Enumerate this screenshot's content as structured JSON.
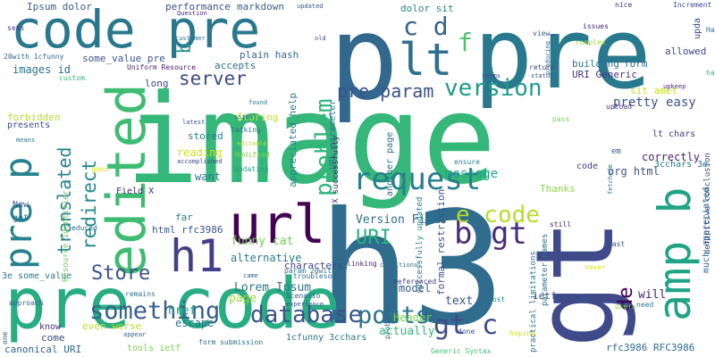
{
  "words": [
    {
      "text": "image",
      "color": "#35b779"
    },
    {
      "text": "h3",
      "color": "#2f6c8e"
    },
    {
      "text": "gt",
      "color": "#3e4a89"
    },
    {
      "text": "pre code",
      "color": "#27ad81"
    },
    {
      "text": "p",
      "color": "#31688e"
    },
    {
      "text": "pre",
      "color": "#29798e"
    },
    {
      "text": "code pre",
      "color": "#2a788e"
    },
    {
      "text": "url",
      "color": "#440154"
    },
    {
      "text": "edited",
      "color": "#3fbc73"
    },
    {
      "text": "lt",
      "color": "#2e6e8e"
    },
    {
      "text": "amp b",
      "color": "#20a386"
    },
    {
      "text": "h1",
      "color": "#424086"
    },
    {
      "text": "pre p",
      "color": "#26828e"
    },
    {
      "text": "request",
      "color": "#277f8e"
    },
    {
      "text": "database",
      "color": "#3b518b"
    },
    {
      "text": "something",
      "color": "#355f8d"
    },
    {
      "text": "posts",
      "color": "#2c738e"
    },
    {
      "text": "version",
      "color": "#1e9c89"
    },
    {
      "text": "pre param",
      "color": "#3b528b"
    },
    {
      "text": "b gt",
      "color": "#472e7c"
    },
    {
      "text": "gt c",
      "color": "#3e4c8a"
    },
    {
      "text": "e code",
      "color": "#b5de2b"
    },
    {
      "text": "URI",
      "color": "#2db27d"
    },
    {
      "text": "Store",
      "color": "#3b528b"
    },
    {
      "text": "redirect",
      "color": "#23898e"
    },
    {
      "text": "translated",
      "color": "#26828e"
    },
    {
      "text": "server",
      "color": "#3e4989"
    },
    {
      "text": "problem",
      "color": "#31b57b"
    },
    {
      "text": "c d",
      "color": "#33638d"
    },
    {
      "text": "f",
      "color": "#4ec36b"
    },
    {
      "text": "b",
      "color": "#20928c"
    },
    {
      "text": "Lorem Ipsum",
      "color": "#2b758e"
    },
    {
      "text": "de",
      "color": "#440154"
    },
    {
      "text": "message",
      "color": "#1fa287"
    },
    {
      "text": "Version Field",
      "color": "#2e6f8e"
    },
    {
      "text": "funny cat",
      "color": "#6ece58"
    },
    {
      "text": "alternative",
      "color": "#287c8e"
    },
    {
      "text": "characters",
      "color": "#414487"
    },
    {
      "text": "Header",
      "color": "#7ad151"
    },
    {
      "text": "model",
      "color": "#38598c"
    },
    {
      "text": "text",
      "color": "#3a538b"
    },
    {
      "text": "page",
      "color": "#98d83e"
    },
    {
      "text": "href",
      "color": "#1f998a"
    },
    {
      "text": "escape",
      "color": "#2c728e"
    },
    {
      "text": "actually",
      "color": "#37b878"
    },
    {
      "text": "pretty easy",
      "color": "#3b528b"
    },
    {
      "text": "sit amet",
      "color": "#c2df23"
    },
    {
      "text": "URI Generic",
      "color": "#46337f"
    },
    {
      "text": "form",
      "color": "#31688e"
    },
    {
      "text": "building",
      "color": "#2d718e"
    },
    {
      "text": "allowed",
      "color": "#3e4989"
    },
    {
      "text": "upload",
      "color": "#453882"
    },
    {
      "text": "org html",
      "color": "#3b528b"
    },
    {
      "text": "correctly",
      "color": "#481f70"
    },
    {
      "text": "3cchars 3e",
      "color": "#2a778e"
    },
    {
      "text": "lt chars",
      "color": "#443a83"
    },
    {
      "text": "Thanks",
      "color": "#8bd646"
    },
    {
      "text": "code",
      "color": "#443b84"
    },
    {
      "text": "will",
      "color": "#482374"
    },
    {
      "text": "need",
      "color": "#287d8e"
    },
    {
      "text": "ietf org",
      "color": "#3a538b"
    },
    {
      "text": "rfc3986 RFC3986",
      "color": "#31688e"
    },
    {
      "text": "1cfunny 3cchars",
      "color": "#2a788e"
    },
    {
      "text": "canonical URI",
      "color": "#33628d"
    },
    {
      "text": "tools ietf",
      "color": "#7ad151"
    },
    {
      "text": "even worse",
      "color": "#b8de29"
    },
    {
      "text": "come",
      "color": "#3e4a89"
    },
    {
      "text": "know",
      "color": "#46327e"
    },
    {
      "text": "html rfc3986",
      "color": "#39568c"
    },
    {
      "text": "far",
      "color": "#287d8e"
    },
    {
      "text": "want",
      "color": "#2a788e"
    },
    {
      "text": "reading",
      "color": "#d0e11c"
    },
    {
      "text": "stored",
      "color": "#297a8e"
    },
    {
      "text": "Storing",
      "color": "#c0df25"
    },
    {
      "text": "plain hash",
      "color": "#31688e"
    },
    {
      "text": "accepts",
      "color": "#2d708e"
    },
    {
      "text": "markdown",
      "color": "#33638d"
    },
    {
      "text": "dolor sit",
      "color": "#25838e"
    },
    {
      "text": "performance",
      "color": "#3b518b"
    },
    {
      "text": "Ipsum dolor",
      "color": "#365d8d"
    },
    {
      "text": "images id",
      "color": "#2c728e"
    },
    {
      "text": "some_value pre",
      "color": "#3a548c"
    },
    {
      "text": "forbidden",
      "color": "#b0dd2f"
    },
    {
      "text": "presents",
      "color": "#3e4a89"
    },
    {
      "text": "Field X",
      "color": "#482878"
    },
    {
      "text": "New",
      "color": "#3b528b"
    },
    {
      "text": "got",
      "color": "#2c728e"
    },
    {
      "text": "3e some_value",
      "color": "#2b748e"
    },
    {
      "text": "long",
      "color": "#3e4989"
    },
    {
      "text": "sets",
      "color": "#443983"
    },
    {
      "text": "custom",
      "color": "#35b779"
    },
    {
      "text": "20with 1cfunny",
      "color": "#31688e"
    },
    {
      "text": "Uniform Resource",
      "color": "#481b6d"
    },
    {
      "text": "Question",
      "color": "#482677"
    },
    {
      "text": "customer",
      "color": "#2d708e"
    },
    {
      "text": "updated",
      "color": "#3b528b"
    },
    {
      "text": "nice",
      "color": "#46337f"
    },
    {
      "text": "Increment",
      "color": "#3f4788"
    },
    {
      "text": "issues",
      "color": "#482475"
    },
    {
      "text": "view",
      "color": "#38598c"
    },
    {
      "text": "seen",
      "color": "#2a788e"
    },
    {
      "text": "old",
      "color": "#3e4989"
    },
    {
      "text": "complex",
      "color": "#9dd93b"
    },
    {
      "text": "return",
      "color": "#414487"
    },
    {
      "text": "status",
      "color": "#3b528b"
    },
    {
      "text": "seems",
      "color": "#3e4c8a"
    },
    {
      "text": "lacking",
      "color": "#2e6e8e"
    },
    {
      "text": "found",
      "color": "#29798e"
    },
    {
      "text": "sites",
      "color": "#2d708e"
    },
    {
      "text": "latest",
      "color": "#3b528b"
    },
    {
      "text": "accomplished",
      "color": "#3e4989"
    },
    {
      "text": "Modified",
      "color": "#7fd34e"
    },
    {
      "text": "editable",
      "color": "#bade28"
    },
    {
      "text": "updating",
      "color": "#1f9e89"
    },
    {
      "text": "good",
      "color": "#d2e21b"
    },
    {
      "text": "means",
      "color": "#2a788e"
    },
    {
      "text": "appreciated help",
      "color": "#26828e"
    },
    {
      "text": "URL parameter",
      "color": "#2a778e"
    },
    {
      "text": "formal restriction",
      "color": "#3b528b"
    },
    {
      "text": "successfully updated",
      "color": "#25848e"
    },
    {
      "text": "X successfully",
      "color": "#472c7a"
    },
    {
      "text": "another page",
      "color": "#2e6e8e"
    },
    {
      "text": "Resource Identifier",
      "color": "#6ece58"
    },
    {
      "text": "educed",
      "color": "#31688e"
    },
    {
      "text": "remains",
      "color": "#2c728e"
    },
    {
      "text": "approach",
      "color": "#34618d"
    },
    {
      "text": "appear",
      "color": "#32648e"
    },
    {
      "text": "one",
      "color": "#3a548c"
    },
    {
      "text": "linking",
      "color": "#482576"
    },
    {
      "text": "conditional",
      "color": "#2d718e"
    },
    {
      "text": "param 20with",
      "color": "#2a768e"
    },
    {
      "text": "troublesome",
      "color": "#306a8e"
    },
    {
      "text": "came",
      "color": "#38588c"
    },
    {
      "text": "Scenario",
      "color": "#35608d"
    },
    {
      "text": "experience",
      "color": "#3b528b"
    },
    {
      "text": "referenced",
      "color": "#443a83"
    },
    {
      "text": "form submission",
      "color": "#2f6b8e"
    },
    {
      "text": "probably",
      "color": "#31668e"
    },
    {
      "text": "Generic Syntax",
      "color": "#42be71"
    },
    {
      "text": "done",
      "color": "#3e4a89"
    },
    {
      "text": "hoping",
      "color": "#c8e020"
    },
    {
      "text": "practical limitations",
      "color": "#2a788e"
    },
    {
      "text": "parameter names",
      "color": "#2e6f8e"
    },
    {
      "text": "cost",
      "color": "#25838e"
    },
    {
      "text": "Last",
      "color": "#3b528b"
    },
    {
      "text": "users",
      "color": "#7ad151"
    },
    {
      "text": "never",
      "color": "#d8e219"
    },
    {
      "text": "still",
      "color": "#482374"
    },
    {
      "text": "ensure",
      "color": "#25838e"
    },
    {
      "text": "pass",
      "color": "#7ad151"
    },
    {
      "text": "fetchedm",
      "color": "#2a788e"
    },
    {
      "text": "em",
      "color": "#39568c"
    },
    {
      "text": "much appreciated",
      "color": "#31688e"
    },
    {
      "text": "definitive conclusion",
      "color": "#3b528b"
    },
    {
      "text": "upkeep",
      "color": "#482878"
    },
    {
      "text": "producing",
      "color": "#33638d"
    },
    {
      "text": "upda",
      "color": "#3e4989"
    },
    {
      "text": "Ha",
      "color": "#2a788e"
    },
    {
      "text": "ha",
      "color": "#35b779"
    }
  ]
}
